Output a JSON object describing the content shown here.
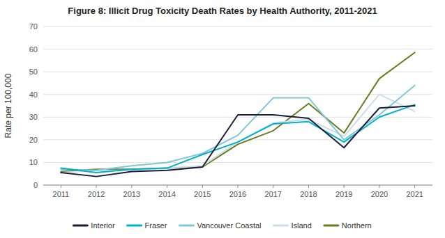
{
  "chart_data": {
    "type": "line",
    "title": "Figure 8: Illicit Drug Toxicity Death Rates by Health Authority, 2011-2021",
    "y_label": "Rate per 100,000",
    "x": [
      2011,
      2012,
      2013,
      2014,
      2015,
      2016,
      2017,
      2018,
      2019,
      2020,
      2021
    ],
    "xlim": [
      2010.5,
      2021.5
    ],
    "xticks": [
      2011,
      2012,
      2013,
      2014,
      2015,
      2016,
      2017,
      2018,
      2019,
      2020,
      2021
    ],
    "ylim": [
      0,
      70
    ],
    "yticks": [
      0,
      10,
      20,
      30,
      40,
      50,
      60,
      70
    ],
    "grid": true,
    "legend": "bottom",
    "series": [
      {
        "name": "Interior",
        "color": "#1c1c3a",
        "values": [
          5.5,
          3.8,
          6.0,
          6.5,
          8.0,
          31.0,
          31.0,
          29.5,
          16.5,
          34.0,
          35.0
        ]
      },
      {
        "name": "Fraser",
        "color": "#00b0c8",
        "values": [
          7.5,
          5.5,
          7.0,
          7.5,
          13.5,
          19.0,
          27.0,
          28.0,
          19.0,
          30.0,
          35.5
        ]
      },
      {
        "name": "Vancouver Coastal",
        "color": "#7ec8d8",
        "values": [
          7.0,
          6.5,
          8.5,
          10.0,
          14.0,
          22.0,
          38.5,
          38.5,
          20.0,
          31.0,
          44.0
        ]
      },
      {
        "name": "Island",
        "color": "#c8dfe8",
        "values": [
          5.5,
          6.5,
          6.5,
          7.5,
          8.5,
          19.0,
          27.5,
          29.0,
          21.5,
          40.0,
          32.5
        ]
      },
      {
        "name": "Northern",
        "color": "#6b7a1e",
        "values": [
          6.0,
          7.0,
          7.0,
          7.5,
          8.0,
          18.0,
          24.0,
          36.0,
          23.0,
          47.0,
          58.5
        ]
      }
    ]
  }
}
